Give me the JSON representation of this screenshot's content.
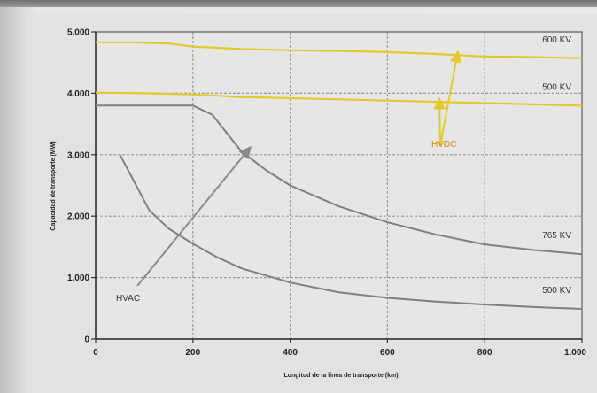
{
  "chart_data": {
    "type": "line",
    "xlabel": "Longitud de la línea de transporte (km)",
    "ylabel": "Capacidad de transporte (MW)",
    "xlim": [
      0,
      1000
    ],
    "ylim": [
      0,
      5000
    ],
    "grid": true,
    "x_ticks": [
      0,
      200,
      400,
      600,
      800,
      1000
    ],
    "x_tick_labels": [
      "0",
      "200",
      "400",
      "600",
      "800",
      "1.000"
    ],
    "y_ticks": [
      0,
      1000,
      2000,
      3000,
      4000,
      5000
    ],
    "y_tick_labels": [
      "0",
      "1.000",
      "2.000",
      "3.000",
      "4.000",
      "5.000"
    ],
    "colors": {
      "hvdc": "#e3c92e",
      "hvac": "#808080",
      "hvdc_label": "#d08a00",
      "arrow": "#8a8a8a"
    },
    "series": [
      {
        "group": "hvdc",
        "label": "600 KV",
        "x": [
          0,
          80,
          150,
          200,
          300,
          400,
          500,
          600,
          700,
          800,
          900,
          1000
        ],
        "y": [
          4830,
          4830,
          4810,
          4760,
          4720,
          4700,
          4690,
          4670,
          4640,
          4600,
          4590,
          4570
        ]
      },
      {
        "group": "hvdc",
        "label": "500 KV",
        "x": [
          0,
          100,
          200,
          300,
          400,
          500,
          600,
          700,
          800,
          900,
          1000
        ],
        "y": [
          4010,
          4000,
          3980,
          3940,
          3920,
          3900,
          3880,
          3860,
          3840,
          3820,
          3800
        ]
      },
      {
        "group": "hvac",
        "label": "765 KV",
        "x": [
          0,
          100,
          200,
          240,
          270,
          300,
          350,
          400,
          500,
          600,
          700,
          800,
          900,
          1000
        ],
        "y": [
          3800,
          3800,
          3800,
          3650,
          3350,
          3050,
          2750,
          2500,
          2160,
          1900,
          1700,
          1540,
          1450,
          1380
        ]
      },
      {
        "group": "hvac",
        "label": "500 KV",
        "x": [
          50,
          80,
          110,
          150,
          200,
          250,
          300,
          400,
          500,
          600,
          700,
          800,
          900,
          1000
        ],
        "y": [
          3000,
          2550,
          2100,
          1800,
          1550,
          1330,
          1150,
          920,
          760,
          670,
          610,
          560,
          520,
          490
        ]
      }
    ],
    "annotations": [
      {
        "text": "HVDC"
      },
      {
        "text": "HVAC"
      }
    ]
  }
}
